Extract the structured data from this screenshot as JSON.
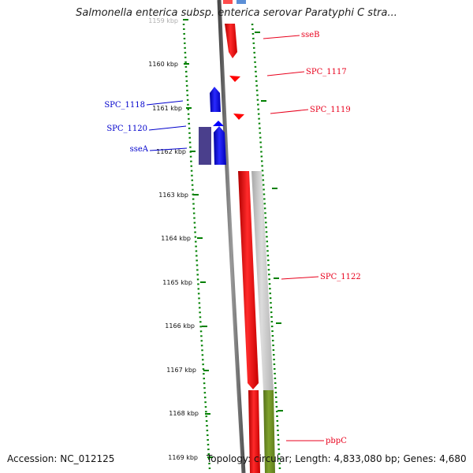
{
  "header": {
    "title": "Salmonella enterica subsp. enterica serovar Paratyphi C stra..."
  },
  "footer": {
    "accession": "Accession: NC_012125",
    "summary": "Topology: circular; Length: 4,833,080 bp; Genes: 4,680"
  },
  "colors": {
    "forward_gene": "#ff0000",
    "reverse_gene": "#0000ff",
    "reverse_gene_dark": "#4a3f8c",
    "other_feature": "#c0c0c0",
    "green_feature": "#6b8e23",
    "backbone": "#707070",
    "gc_dots": "#008000"
  },
  "ticks": [
    {
      "label": "1159 kbp"
    },
    {
      "label": "1160 kbp"
    },
    {
      "label": "1161 kbp"
    },
    {
      "label": "1162 kbp"
    },
    {
      "label": "1163 kbp"
    },
    {
      "label": "1164 kbp"
    },
    {
      "label": "1165 kbp"
    },
    {
      "label": "1166 kbp"
    },
    {
      "label": "1167 kbp"
    },
    {
      "label": "1168 kbp"
    },
    {
      "label": "1169 kbp"
    }
  ],
  "genes": [
    {
      "name": "sseB",
      "strand": "forward"
    },
    {
      "name": "SPC_1117",
      "strand": "forward"
    },
    {
      "name": "SPC_1119",
      "strand": "forward"
    },
    {
      "name": "SPC_1122",
      "strand": "forward"
    },
    {
      "name": "pbpC",
      "strand": "forward"
    },
    {
      "name": "SPC_1118",
      "strand": "reverse"
    },
    {
      "name": "SPC_1120",
      "strand": "reverse"
    },
    {
      "name": "sseA",
      "strand": "reverse"
    }
  ]
}
